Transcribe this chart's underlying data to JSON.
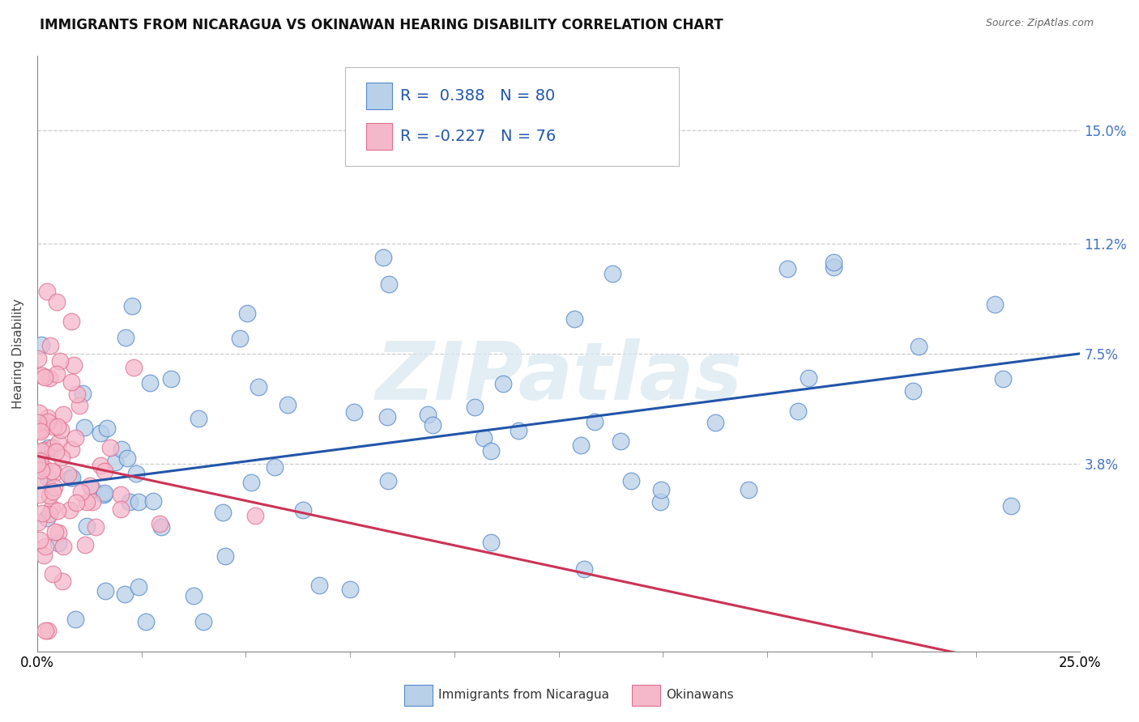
{
  "title": "IMMIGRANTS FROM NICARAGUA VS OKINAWAN HEARING DISABILITY CORRELATION CHART",
  "source": "Source: ZipAtlas.com",
  "xlabel_blue": "Immigrants from Nicaragua",
  "xlabel_pink": "Okinawans",
  "ylabel": "Hearing Disability",
  "xlim": [
    0.0,
    25.0
  ],
  "ylim": [
    -2.5,
    17.5
  ],
  "x_tick_labels": [
    "0.0%",
    "25.0%"
  ],
  "y_ticks": [
    3.8,
    7.5,
    11.2,
    15.0
  ],
  "y_tick_labels": [
    "3.8%",
    "7.5%",
    "11.2%",
    "15.0%"
  ],
  "blue_color": "#b8d0e8",
  "blue_edge_color": "#5588cc",
  "pink_color": "#f5b8cb",
  "pink_edge_color": "#e07090",
  "blue_line_color": "#2255aa",
  "pink_line_color": "#cc3355",
  "blue_R": 0.388,
  "blue_N": 80,
  "pink_R": -0.227,
  "pink_N": 76,
  "watermark": "ZIPatlas",
  "background_color": "#ffffff",
  "title_fontsize": 12,
  "axis_label_fontsize": 11,
  "tick_fontsize": 12,
  "legend_fontsize": 14,
  "blue_line_start_y": 3.2,
  "blue_line_end_y": 7.5,
  "pink_line_start_y": 4.2,
  "pink_line_end_y": -0.5
}
